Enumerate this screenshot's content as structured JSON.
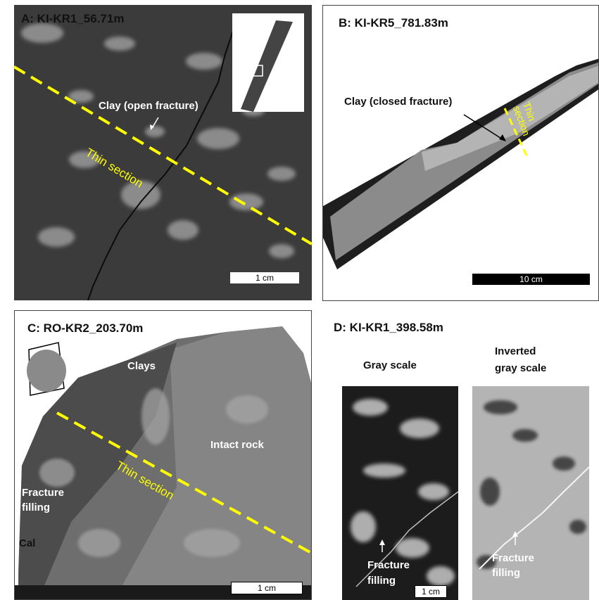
{
  "panel_a": {
    "title": "A: KI-KR1_56.71m",
    "annotation": "Clay (open fracture)",
    "section_label": "Thin section",
    "scale_bar": "1 cm"
  },
  "panel_b": {
    "title": "B: KI-KR5_781.83m",
    "annotation": "Clay (closed fracture)",
    "section_label_1": "Thin",
    "section_label_2": "section",
    "scale_bar": "10 cm"
  },
  "panel_c": {
    "title": "C: RO-KR2_203.70m",
    "label_clays": "Clays",
    "label_intact": "Intact rock",
    "label_filling_1": "Fracture",
    "label_filling_2": "filling",
    "label_cal": "Cal",
    "section_label": "Thin section",
    "scale_bar": "1 cm"
  },
  "panel_d": {
    "title": "D: KI-KR1_398.58m",
    "left_title": "Gray scale",
    "right_title_1": "Inverted",
    "right_title_2": "gray scale",
    "left_label_1": "Fracture",
    "left_label_2": "filling",
    "right_label_1": "Fracture",
    "right_label_2": "filling",
    "scale_bar": "1 cm"
  },
  "colors": {
    "section_line": "#ffff00",
    "label_light": "#ffffff",
    "label_dark": "#111111"
  }
}
